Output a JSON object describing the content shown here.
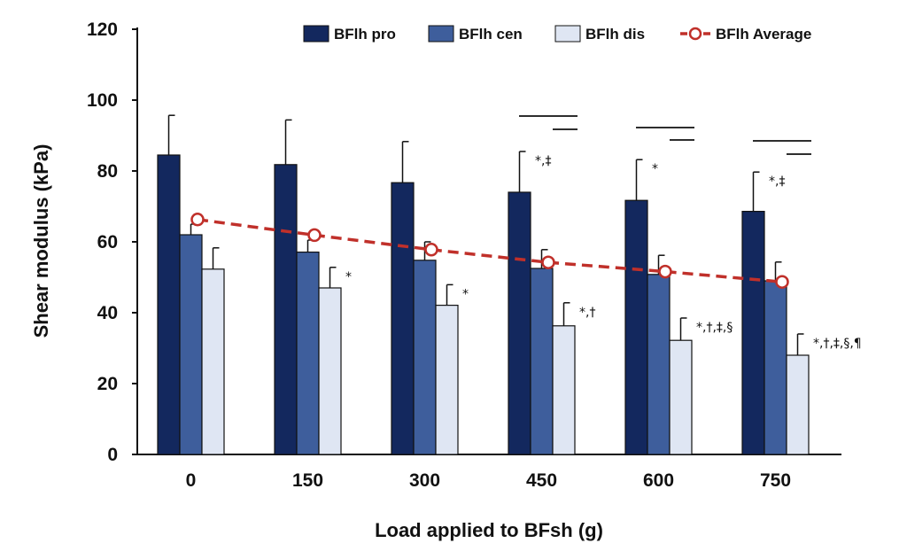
{
  "chart_data": {
    "type": "bar",
    "xlabel": "Load applied to BFsh (g)",
    "ylabel": "Shear modulus  (kPa)",
    "ylim": [
      0,
      120
    ],
    "yticks": [
      0,
      20,
      40,
      60,
      80,
      100,
      120
    ],
    "categories": [
      "0",
      "150",
      "300",
      "450",
      "600",
      "750"
    ],
    "series": [
      {
        "name": "BFlh pro",
        "color": "#13285e",
        "values": [
          84.5,
          81.8,
          76.7,
          74.0,
          71.7,
          68.6
        ],
        "errors": [
          11.2,
          12.6,
          11.6,
          11.5,
          11.5,
          11.1
        ]
      },
      {
        "name": "BFlh cen",
        "color": "#3e5e9c",
        "values": [
          62.0,
          57.1,
          54.8,
          52.5,
          50.8,
          49.0
        ],
        "errors": [
          3.0,
          3.4,
          5.2,
          5.3,
          5.4,
          5.3
        ]
      },
      {
        "name": "BFlh dis",
        "color": "#dfe6f3",
        "values": [
          52.3,
          47.0,
          42.1,
          36.3,
          32.2,
          28.0
        ],
        "errors": [
          6.0,
          5.8,
          5.8,
          6.5,
          6.3,
          6.0
        ]
      }
    ],
    "average": {
      "name": "BFlh Average",
      "color": "#c0302a",
      "values": [
        66.3,
        61.9,
        57.8,
        54.2,
        51.6,
        48.7
      ]
    },
    "annotations": [
      {
        "category": "450",
        "series": "BFlh pro",
        "text": "*,‡"
      },
      {
        "category": "600",
        "series": "BFlh pro",
        "text": "*"
      },
      {
        "category": "750",
        "series": "BFlh pro",
        "text": "*,‡"
      },
      {
        "category": "150",
        "series": "BFlh dis",
        "text": "*"
      },
      {
        "category": "300",
        "series": "BFlh dis",
        "text": "*"
      },
      {
        "category": "450",
        "series": "BFlh dis",
        "text": "*,†"
      },
      {
        "category": "600",
        "series": "BFlh dis",
        "text": "*,†,‡,§"
      },
      {
        "category": "750",
        "series": "BFlh dis",
        "text": "*,†,‡,§,¶"
      }
    ],
    "significance_brackets": [
      "450",
      "600",
      "750"
    ],
    "legend_position": "top",
    "grid": false
  }
}
